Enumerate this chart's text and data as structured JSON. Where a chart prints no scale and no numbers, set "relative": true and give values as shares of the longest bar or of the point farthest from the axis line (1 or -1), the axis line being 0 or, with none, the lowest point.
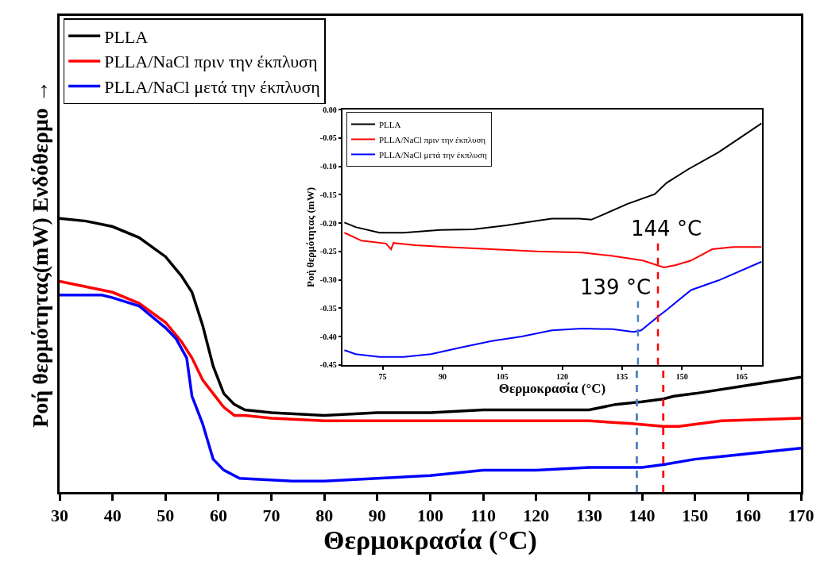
{
  "chart_data": [
    {
      "type": "line",
      "relative": true,
      "xlabel": "Θερμοκρασία (°C)",
      "ylabel": "Ροή θερμότητας(mW) Ενδόθερμο →",
      "xlim": [
        30,
        170
      ],
      "xticks": [
        30,
        40,
        50,
        60,
        70,
        80,
        90,
        100,
        110,
        120,
        130,
        140,
        150,
        160,
        170
      ],
      "tick_labels": "x",
      "legend": "top left",
      "marker": "none",
      "line_style": "solid",
      "series": [
        {
          "name": "PLLA",
          "color": "#000000",
          "x": [
            30,
            35,
            40,
            45,
            50,
            53,
            55,
            57,
            59,
            61,
            63,
            65,
            70,
            80,
            90,
            100,
            110,
            120,
            130,
            135,
            140,
            144,
            146,
            150,
            160,
            170
          ],
          "values": [
            1.0,
            0.99,
            0.97,
            0.93,
            0.86,
            0.79,
            0.73,
            0.61,
            0.46,
            0.36,
            0.32,
            0.3,
            0.29,
            0.28,
            0.29,
            0.29,
            0.3,
            0.3,
            0.3,
            0.32,
            0.33,
            0.34,
            0.35,
            0.36,
            0.39,
            0.42
          ]
        },
        {
          "name": "PLLA/NaCl πριν την έκπλυση",
          "color": "#ff0000",
          "x": [
            30,
            40,
            45,
            50,
            53,
            55,
            57,
            59,
            61,
            63,
            65,
            70,
            80,
            100,
            120,
            130,
            138,
            144,
            147,
            155,
            170
          ],
          "values": [
            0.77,
            0.73,
            0.69,
            0.62,
            0.55,
            0.49,
            0.41,
            0.36,
            0.31,
            0.28,
            0.28,
            0.27,
            0.26,
            0.26,
            0.26,
            0.26,
            0.25,
            0.24,
            0.24,
            0.26,
            0.27
          ]
        },
        {
          "name": "PLLA/NaCl μετά την έκπλυση",
          "color": "#0000ff",
          "x": [
            30,
            35,
            38,
            40,
            45,
            50,
            52,
            54,
            55,
            57,
            59,
            61,
            64,
            74,
            80,
            90,
            100,
            110,
            120,
            130,
            138,
            140,
            144,
            150,
            155,
            160,
            170
          ],
          "values": [
            0.72,
            0.72,
            0.72,
            0.71,
            0.68,
            0.6,
            0.56,
            0.49,
            0.35,
            0.25,
            0.12,
            0.08,
            0.05,
            0.04,
            0.04,
            0.05,
            0.06,
            0.08,
            0.08,
            0.09,
            0.09,
            0.09,
            0.1,
            0.12,
            0.13,
            0.14,
            0.16
          ]
        }
      ],
      "ref_lines": [
        {
          "axis": "x",
          "value": 139,
          "color": "#4a7fc1",
          "line_style": "dashed"
        },
        {
          "axis": "x",
          "value": 144,
          "color": "#ff0000",
          "line_style": "dashed"
        }
      ]
    },
    {
      "type": "line",
      "xlabel": "Θερμοκρασία (°C)",
      "ylabel": "Ροή θερμότητας (mW)",
      "xlim": [
        65,
        170
      ],
      "xticks": [
        75,
        90,
        105,
        120,
        135,
        150,
        165
      ],
      "ylim": [
        -0.45,
        0
      ],
      "yticks": [
        {
          "value": -0.45,
          "label": "-0.45"
        },
        {
          "value": -0.4,
          "label": "-0.40"
        },
        {
          "value": -0.35,
          "label": "-0.35"
        },
        {
          "value": -0.3,
          "label": "-0.30"
        },
        {
          "value": -0.25,
          "label": "-0.25"
        },
        {
          "value": -0.2,
          "label": "-0.20"
        },
        {
          "value": -0.15,
          "label": "-0.15"
        },
        {
          "value": -0.1,
          "label": "-0.10"
        },
        {
          "value": -0.05,
          "label": "-0.05"
        },
        {
          "value": 0,
          "label": "0.00"
        }
      ],
      "legend": "top left",
      "marker": "none",
      "line_style": "solid",
      "series": [
        {
          "name": "PLLA",
          "color": "#000000",
          "x": [
            65.4,
            68.2,
            74.2,
            80.3,
            89.4,
            97.7,
            106,
            113.6,
            117.4,
            124.2,
            127.3,
            130.3,
            136.4,
            143.2,
            146.2,
            151.6,
            159.2,
            170
          ],
          "values": [
            -0.199,
            -0.207,
            -0.217,
            -0.217,
            -0.212,
            -0.211,
            -0.204,
            -0.196,
            -0.192,
            -0.192,
            -0.194,
            -0.185,
            -0.166,
            -0.149,
            -0.129,
            -0.105,
            -0.075,
            -0.024
          ]
        },
        {
          "name": "PLLA/NaCl πριν την έκπλυση",
          "color": "#ff0000",
          "x": [
            65.4,
            69.7,
            75.8,
            77.1,
            77.7,
            83.3,
            90.9,
            102.3,
            113.6,
            125,
            132.6,
            140.2,
            145.5,
            148.5,
            152.3,
            157.6,
            162.9,
            170
          ],
          "values": [
            -0.217,
            -0.231,
            -0.236,
            -0.246,
            -0.235,
            -0.239,
            -0.242,
            -0.246,
            -0.25,
            -0.252,
            -0.258,
            -0.266,
            -0.278,
            -0.274,
            -0.266,
            -0.246,
            -0.242,
            -0.242
          ]
        },
        {
          "name": "PLLA/NaCl μετά την έκπλυση",
          "color": "#0000ff",
          "x": [
            65.4,
            68.2,
            74.2,
            80.3,
            87.1,
            94.7,
            102.3,
            109.9,
            117.4,
            125,
            132.6,
            137.9,
            139.8,
            144,
            146.2,
            152.3,
            159.2,
            170
          ],
          "values": [
            -0.424,
            -0.431,
            -0.436,
            -0.436,
            -0.431,
            -0.419,
            -0.408,
            -0.4,
            -0.389,
            -0.386,
            -0.387,
            -0.392,
            -0.389,
            -0.365,
            -0.353,
            -0.318,
            -0.301,
            -0.268
          ]
        }
      ],
      "ref_lines": [
        {
          "axis": "x",
          "value": 139,
          "label": "139 °C",
          "color": "#4a7fc1",
          "line_style": "dashed"
        },
        {
          "axis": "x",
          "value": 144,
          "label": "144 °C",
          "color": "#ff0000",
          "line_style": "dashed"
        }
      ]
    }
  ]
}
